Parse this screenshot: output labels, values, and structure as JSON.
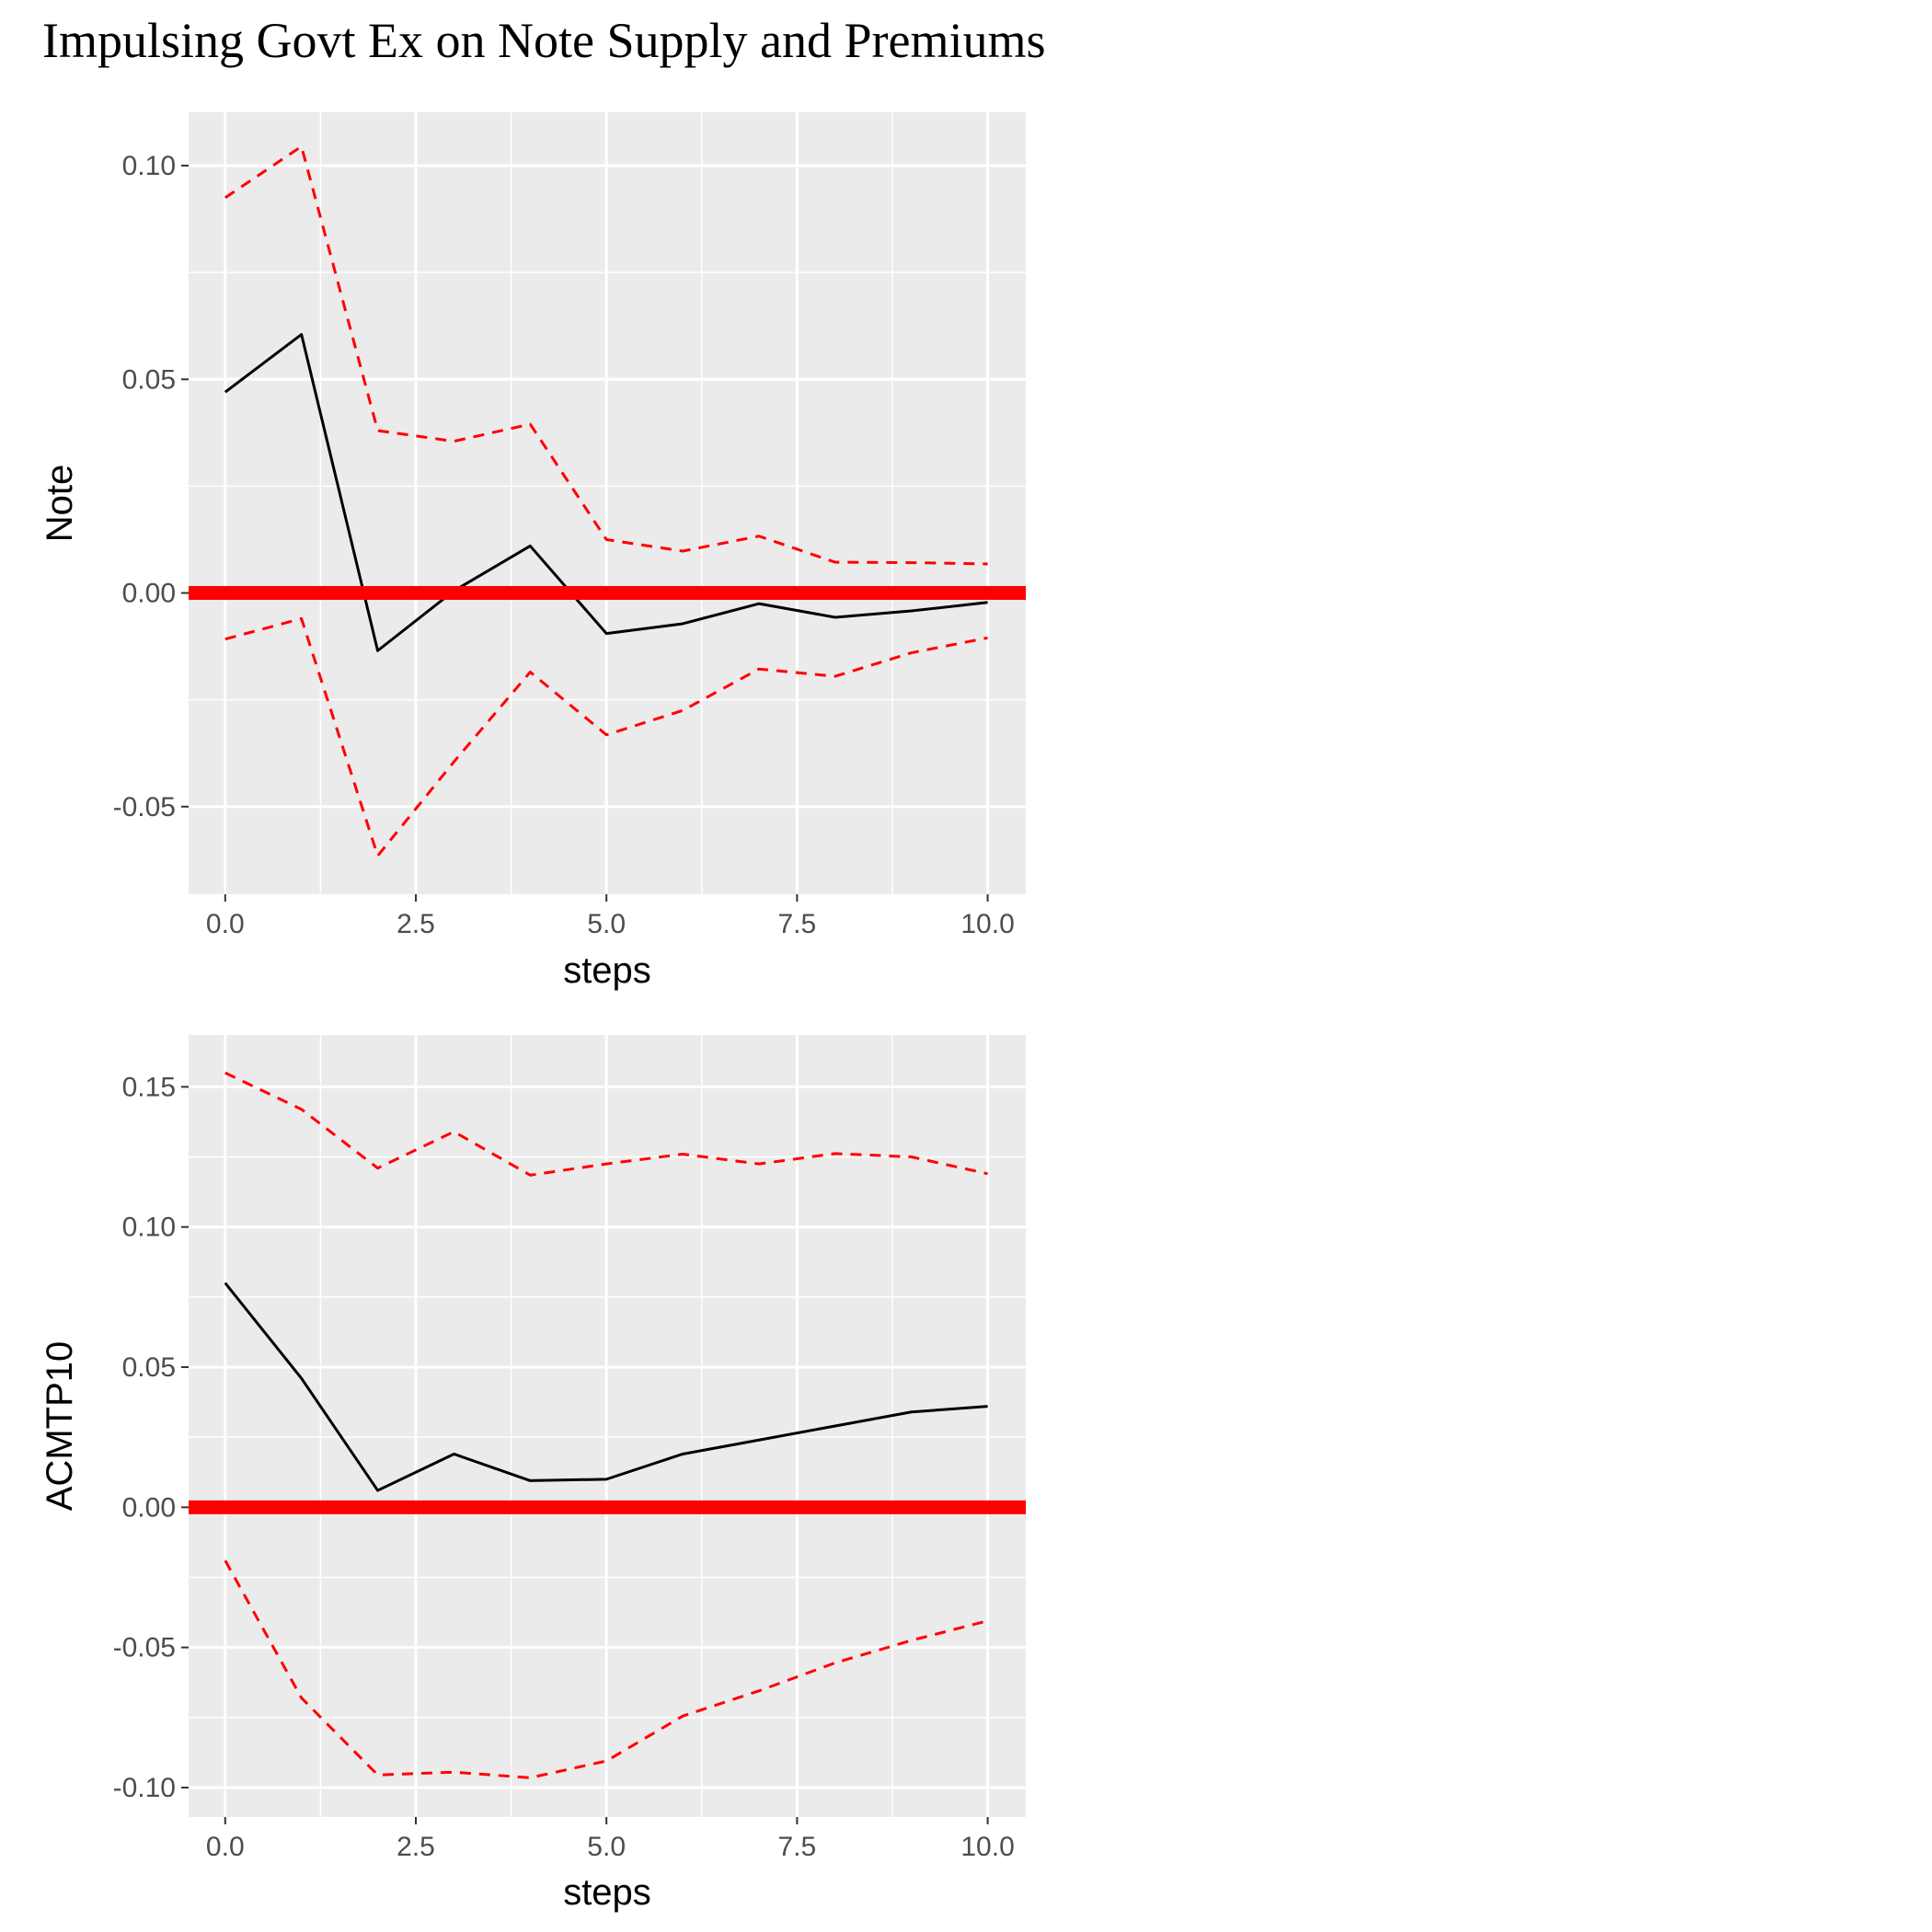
{
  "title": "Impulsing Govt Ex on Note Supply and Premiums",
  "chart_data": [
    {
      "type": "line",
      "ylabel": "Note",
      "xlabel": "steps",
      "xlim": [
        -0.48,
        10.5
      ],
      "ylim": [
        -0.0705,
        0.1125
      ],
      "x_ticks": [
        0,
        2.5,
        5,
        7.5,
        10
      ],
      "x_tick_labels": [
        "0.0",
        "2.5",
        "5.0",
        "7.5",
        "10.0"
      ],
      "y_ticks": [
        -0.05,
        0,
        0.05,
        0.1
      ],
      "y_tick_labels": [
        "-0.05",
        "0.00",
        "0.05",
        "0.10"
      ],
      "grid": true,
      "x": [
        0,
        1,
        2,
        3,
        4,
        5,
        6,
        7,
        8,
        9,
        10
      ],
      "series": [
        {
          "role": "response",
          "style": "solid",
          "color": "#000000",
          "values": [
            0.047,
            0.0605,
            -0.0135,
            0.0005,
            0.011,
            -0.0095,
            -0.0072,
            -0.0025,
            -0.0057,
            -0.0042,
            -0.0022
          ]
        },
        {
          "role": "upper",
          "style": "dashed",
          "color": "#ff0000",
          "values": [
            0.0925,
            0.1045,
            0.038,
            0.0355,
            0.0395,
            0.0125,
            0.0098,
            0.0133,
            0.0072,
            0.0071,
            0.0068
          ]
        },
        {
          "role": "lower",
          "style": "dashed",
          "color": "#ff0000",
          "values": [
            -0.0108,
            -0.006,
            -0.0615,
            -0.0395,
            -0.0185,
            -0.0332,
            -0.0275,
            -0.0178,
            -0.0195,
            -0.014,
            -0.0105
          ]
        }
      ],
      "hline": {
        "y": 0,
        "color": "#ff0000"
      }
    },
    {
      "type": "line",
      "ylabel": "ACMTP10",
      "xlabel": "steps",
      "xlim": [
        -0.48,
        10.5
      ],
      "ylim": [
        -0.1105,
        0.1685
      ],
      "x_ticks": [
        0,
        2.5,
        5,
        7.5,
        10
      ],
      "x_tick_labels": [
        "0.0",
        "2.5",
        "5.0",
        "7.5",
        "10.0"
      ],
      "y_ticks": [
        -0.1,
        -0.05,
        0,
        0.05,
        0.1,
        0.15
      ],
      "y_tick_labels": [
        "-0.10",
        "-0.05",
        "0.00",
        "0.05",
        "0.10",
        "0.15"
      ],
      "grid": true,
      "x": [
        0,
        1,
        2,
        3,
        4,
        5,
        6,
        7,
        8,
        9,
        10
      ],
      "series": [
        {
          "role": "response",
          "style": "solid",
          "color": "#000000",
          "values": [
            0.08,
            0.046,
            0.006,
            0.019,
            0.0095,
            0.01,
            0.019,
            0.024,
            0.029,
            0.034,
            0.036
          ]
        },
        {
          "role": "upper",
          "style": "dashed",
          "color": "#ff0000",
          "values": [
            0.155,
            0.142,
            0.121,
            0.134,
            0.1185,
            0.1225,
            0.126,
            0.1225,
            0.1262,
            0.125,
            0.119
          ]
        },
        {
          "role": "lower",
          "style": "dashed",
          "color": "#ff0000",
          "values": [
            -0.019,
            -0.068,
            -0.0955,
            -0.0945,
            -0.0965,
            -0.0905,
            -0.0745,
            -0.0655,
            -0.0555,
            -0.0475,
            -0.0405
          ]
        }
      ],
      "hline": {
        "y": 0,
        "color": "#ff0000"
      }
    }
  ]
}
